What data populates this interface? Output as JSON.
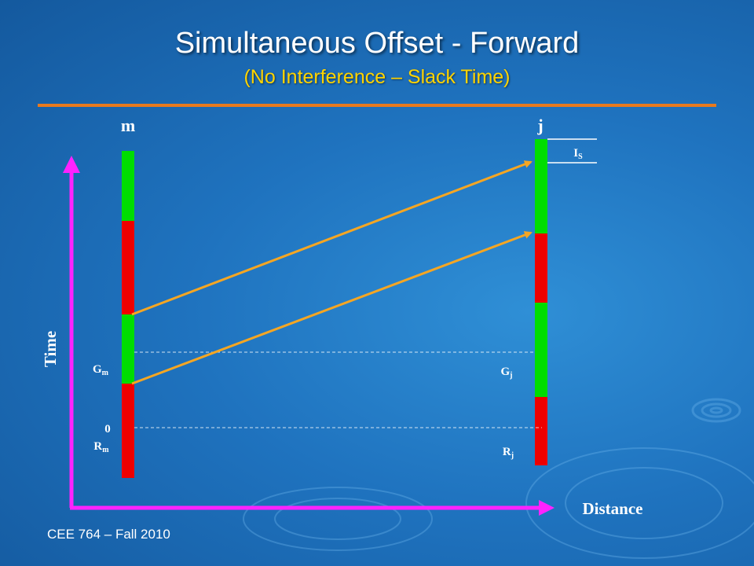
{
  "title": "Simultaneous Offset - Forward",
  "subtitle": "(No Interference – Slack Time)",
  "footer": "CEE 764 – Fall 2010",
  "diagram": {
    "intersection_m": {
      "label": "m",
      "g_label": "G",
      "g_sub": "m",
      "zero_label": "0",
      "r_label": "R",
      "r_sub": "m"
    },
    "intersection_j": {
      "label": "j",
      "g_label": "G",
      "g_sub": "j",
      "r_label": "R",
      "r_sub": "j"
    },
    "slack_label": "I",
    "slack_sub": "S",
    "y_axis_label": "Time",
    "x_axis_label": "Distance",
    "colors": {
      "green": "#00dd00",
      "red": "#ee0000",
      "arrow": "#f5a623",
      "axis": "#ff22ff",
      "rule": "#e87a1e",
      "title_accent": "#ffd400"
    }
  }
}
